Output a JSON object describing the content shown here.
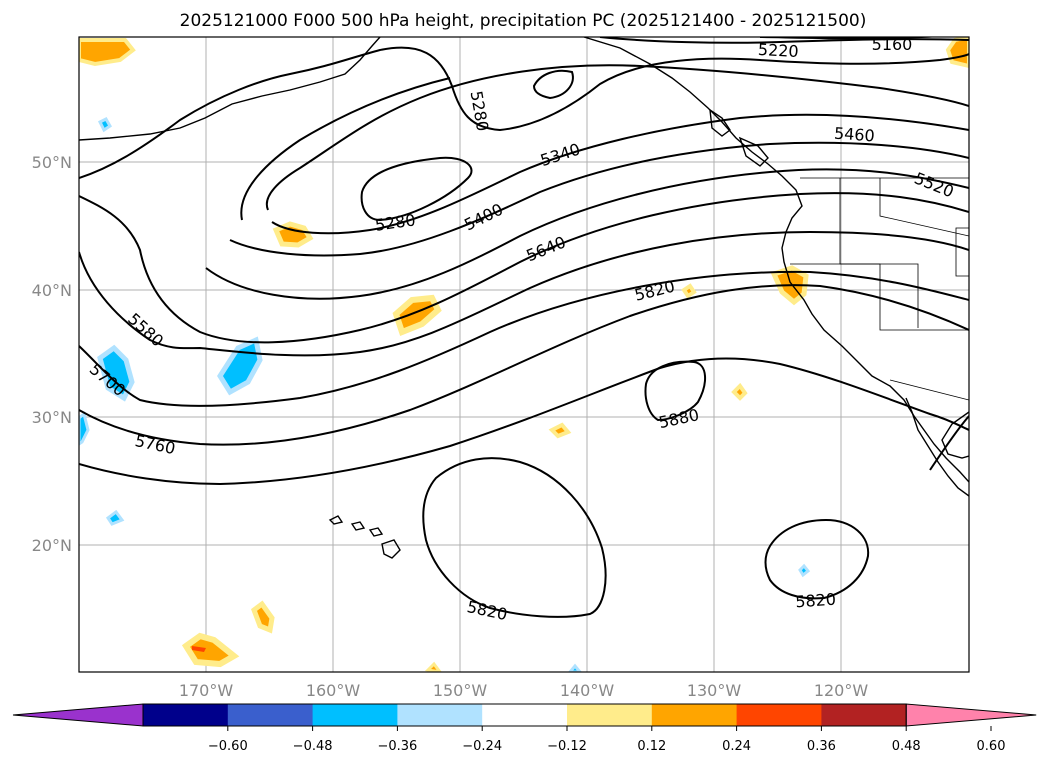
{
  "title": "2025121000 F000 500 hPa height, precipitation PC (2025121400 - 2025121500)",
  "lat_labels": [
    "50°N",
    "40°N",
    "30°N",
    "20°N"
  ],
  "lon_labels": [
    "170°W",
    "160°W",
    "150°W",
    "140°W",
    "130°W",
    "120°W"
  ],
  "contour_labels": [
    "5220",
    "5160",
    "5280",
    "5460",
    "5340",
    "5520",
    "5280",
    "5400",
    "5640",
    "5820",
    "5580",
    "5700",
    "5880",
    "5760",
    "5820",
    "5820"
  ],
  "colorbar": {
    "ticks": [
      "−0.60",
      "−0.48",
      "−0.36",
      "−0.24",
      "−0.12",
      "0.12",
      "0.24",
      "0.36",
      "0.48",
      "0.60"
    ],
    "colors": [
      "#9a32cd",
      "#00008b",
      "#3a5fcd",
      "#00bfff",
      "#b0e2ff",
      "#ffffff",
      "#ffec8b",
      "#ffa500",
      "#ff4500",
      "#b22222",
      "#ff82ab"
    ]
  }
}
